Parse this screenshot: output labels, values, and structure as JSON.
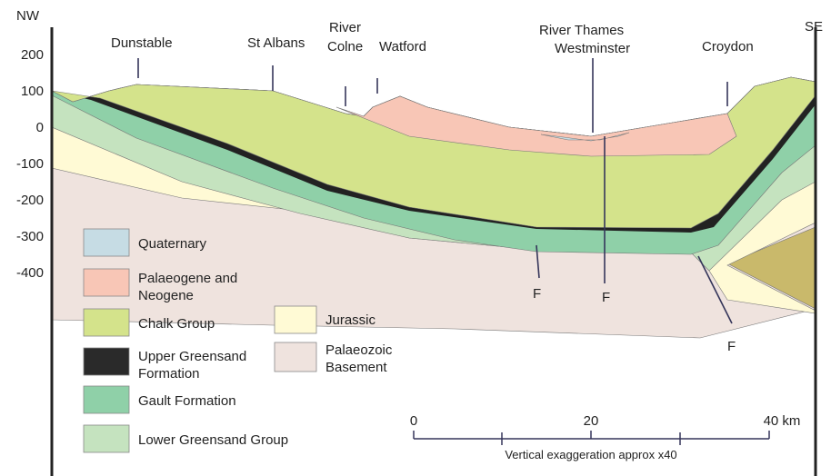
{
  "header": {
    "left": "NW",
    "right": "SE"
  },
  "axis": {
    "labels": [
      "200",
      "100",
      "0",
      "-100",
      "-200",
      "-300",
      "-400"
    ]
  },
  "places": {
    "dunstable": "Dunstable",
    "st_albans": "St Albans",
    "river_colne": [
      "River",
      "Colne"
    ],
    "watford": "Watford",
    "river_thames": [
      "River Thames",
      "Westminster"
    ],
    "croydon": "Croydon"
  },
  "faults": [
    "F",
    "F",
    "F"
  ],
  "legend": {
    "quaternary": "Quaternary",
    "palaeogene": [
      "Palaeogene and",
      "Neogene"
    ],
    "chalk": "Chalk Group",
    "upper_greensand": [
      "Upper Greensand",
      "Formation"
    ],
    "gault": "Gault Formation",
    "lower_greensand": "Lower Greensand Group",
    "jurassic": "Jurassic",
    "basement": [
      "Palaeozoic",
      "Basement"
    ]
  },
  "scale": {
    "labels": [
      "0",
      "20",
      "40 km"
    ],
    "note": "Vertical exaggeration approx x40"
  }
}
